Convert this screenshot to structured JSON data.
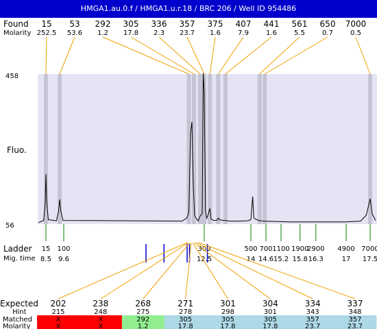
{
  "title": "HMGA1.au.0.f / HMGA1.u.r.18 / BRC 206 / Well ID 954486",
  "colors": {
    "title_bg": "#0000cc",
    "plot_bg": "#e4e4f4",
    "band": "#c4c4d4",
    "found_line": "#f0a000",
    "ladder_tick": "#008000",
    "marker_bar": "#0000cc",
    "matched_red": "#ff0000",
    "matched_green": "#90ee90",
    "matched_blue": "#add8e6"
  },
  "labels": {
    "found": "Found",
    "molarity": "Molarity",
    "fluo": "Fluo.",
    "ladder": "Ladder",
    "mig_time": "Mig. time",
    "expected": "Expected",
    "hint": "Hint",
    "matched": "Matched",
    "molarity_row": "Molarity"
  },
  "chart_data": {
    "type": "line",
    "y_axis": {
      "ticks": [
        "458",
        "56"
      ],
      "range": [
        56,
        458
      ]
    },
    "found_peaks": [
      {
        "size": "15",
        "molarity": "252.5",
        "mig_time": 8.5
      },
      {
        "size": "53",
        "molarity": "53.6",
        "mig_time": 9.35
      },
      {
        "size": "292",
        "molarity": "1.2",
        "mig_time": 12.05
      },
      {
        "size": "305",
        "molarity": "17.8",
        "mig_time": 12.2
      },
      {
        "size": "336",
        "molarity": "2.3",
        "mig_time": 12.38
      },
      {
        "size": "357",
        "molarity": "23.7",
        "mig_time": 12.5
      },
      {
        "size": "375",
        "molarity": "1.6",
        "mig_time": 12.68
      },
      {
        "size": "407",
        "molarity": "7.9",
        "mig_time": 12.95
      },
      {
        "size": "441",
        "molarity": "1.6",
        "mig_time": 13.18
      },
      {
        "size": "561",
        "molarity": "5.5",
        "mig_time": 14.35
      },
      {
        "size": "650",
        "molarity": "0.7",
        "mig_time": 14.55
      },
      {
        "size": "7000",
        "molarity": "0.5",
        "mig_time": 17.5
      }
    ],
    "ladder": [
      {
        "size": "15",
        "mig_time": "8.5"
      },
      {
        "size": "100",
        "mig_time": "9.6"
      },
      {
        "size": "300",
        "mig_time": "12.5"
      },
      {
        "size": "500",
        "mig_time": "14"
      },
      {
        "size": "700",
        "mig_time": "14.6"
      },
      {
        "size": "1100",
        "mig_time": "15.2"
      },
      {
        "size": "1900",
        "mig_time": "15.8"
      },
      {
        "size": "2900",
        "mig_time": "16.3"
      },
      {
        "size": "4900",
        "mig_time": "17"
      },
      {
        "size": "7000",
        "mig_time": "17.5"
      }
    ],
    "trace": [
      [
        8.0,
        60
      ],
      [
        8.35,
        66
      ],
      [
        8.45,
        110
      ],
      [
        8.5,
        190
      ],
      [
        8.55,
        115
      ],
      [
        8.65,
        68
      ],
      [
        9.15,
        65
      ],
      [
        9.28,
        90
      ],
      [
        9.35,
        122
      ],
      [
        9.42,
        92
      ],
      [
        9.55,
        66
      ],
      [
        11.9,
        64
      ],
      [
        11.97,
        70
      ],
      [
        12.0,
        74
      ],
      [
        12.05,
        88
      ],
      [
        12.1,
        300
      ],
      [
        12.14,
        330
      ],
      [
        12.18,
        160
      ],
      [
        12.22,
        78
      ],
      [
        12.28,
        70
      ],
      [
        12.32,
        64
      ],
      [
        12.38,
        78
      ],
      [
        12.44,
        84
      ],
      [
        12.47,
        460
      ],
      [
        12.5,
        410
      ],
      [
        12.54,
        90
      ],
      [
        12.58,
        72
      ],
      [
        12.62,
        80
      ],
      [
        12.68,
        98
      ],
      [
        12.72,
        70
      ],
      [
        12.8,
        66
      ],
      [
        12.9,
        66
      ],
      [
        12.95,
        72
      ],
      [
        13.0,
        68
      ],
      [
        13.1,
        66
      ],
      [
        13.2,
        66
      ],
      [
        13.3,
        64
      ],
      [
        13.6,
        64
      ],
      [
        13.9,
        65
      ],
      [
        14.0,
        68
      ],
      [
        14.07,
        130
      ],
      [
        14.12,
        72
      ],
      [
        14.3,
        66
      ],
      [
        14.5,
        64
      ],
      [
        15.5,
        62
      ],
      [
        17.0,
        62
      ],
      [
        17.3,
        64
      ],
      [
        17.42,
        80
      ],
      [
        17.5,
        124
      ],
      [
        17.58,
        82
      ],
      [
        17.7,
        66
      ]
    ],
    "markers_mig_time": [
      11.2,
      11.55,
      12.0,
      12.07,
      12.6
    ],
    "expected": [
      {
        "value": "202",
        "hint": "215",
        "matched": "X",
        "molarity": "X",
        "status": "unmatched"
      },
      {
        "value": "238",
        "hint": "248",
        "matched": "X",
        "molarity": "X",
        "status": "unmatched"
      },
      {
        "value": "268",
        "hint": "275",
        "matched": "292",
        "molarity": "1.2",
        "status": "partial"
      },
      {
        "value": "271",
        "hint": "278",
        "matched": "305",
        "molarity": "17.8",
        "status": "matched"
      },
      {
        "value": "301",
        "hint": "298",
        "matched": "305",
        "molarity": "17.8",
        "status": "matched"
      },
      {
        "value": "304",
        "hint": "301",
        "matched": "305",
        "molarity": "17.8",
        "status": "matched"
      },
      {
        "value": "334",
        "hint": "343",
        "matched": "357",
        "molarity": "23.7",
        "status": "matched"
      },
      {
        "value": "337",
        "hint": "348",
        "matched": "357",
        "molarity": "23.7",
        "status": "matched"
      }
    ]
  }
}
